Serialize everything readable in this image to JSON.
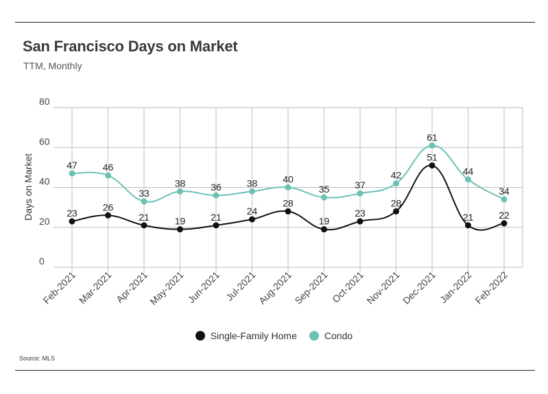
{
  "colors": {
    "single_family": "#111111",
    "condo": "#6cc1b5",
    "grid": "#bdbdbd"
  },
  "header": {
    "title": "San Francisco Days on Market",
    "subtitle": "TTM, Monthly"
  },
  "footer": {
    "source": "Source:  MLS"
  },
  "chart_data": {
    "type": "line",
    "title": "San Francisco Days on Market",
    "subtitle": "TTM, Monthly",
    "xlabel": "",
    "ylabel": "Days on Market",
    "ylim": [
      0,
      80
    ],
    "yticks": [
      0,
      20,
      40,
      60,
      80
    ],
    "grid": true,
    "legend_position": "bottom",
    "categories": [
      "Feb-2021",
      "Mar-2021",
      "Apr-2021",
      "May-2021",
      "Jun-2021",
      "Jul-2021",
      "Aug-2021",
      "Sep-2021",
      "Oct-2021",
      "Nov-2021",
      "Dec-2021",
      "Jan-2022",
      "Feb-2022"
    ],
    "series": [
      {
        "name": "Single-Family Home",
        "color": "#111111",
        "values": [
          23,
          26,
          21,
          19,
          21,
          24,
          28,
          19,
          23,
          28,
          51,
          21,
          22
        ]
      },
      {
        "name": "Condo",
        "color": "#6cc1b5",
        "values": [
          47,
          46,
          33,
          38,
          36,
          38,
          40,
          35,
          37,
          42,
          61,
          44,
          34
        ]
      }
    ]
  }
}
